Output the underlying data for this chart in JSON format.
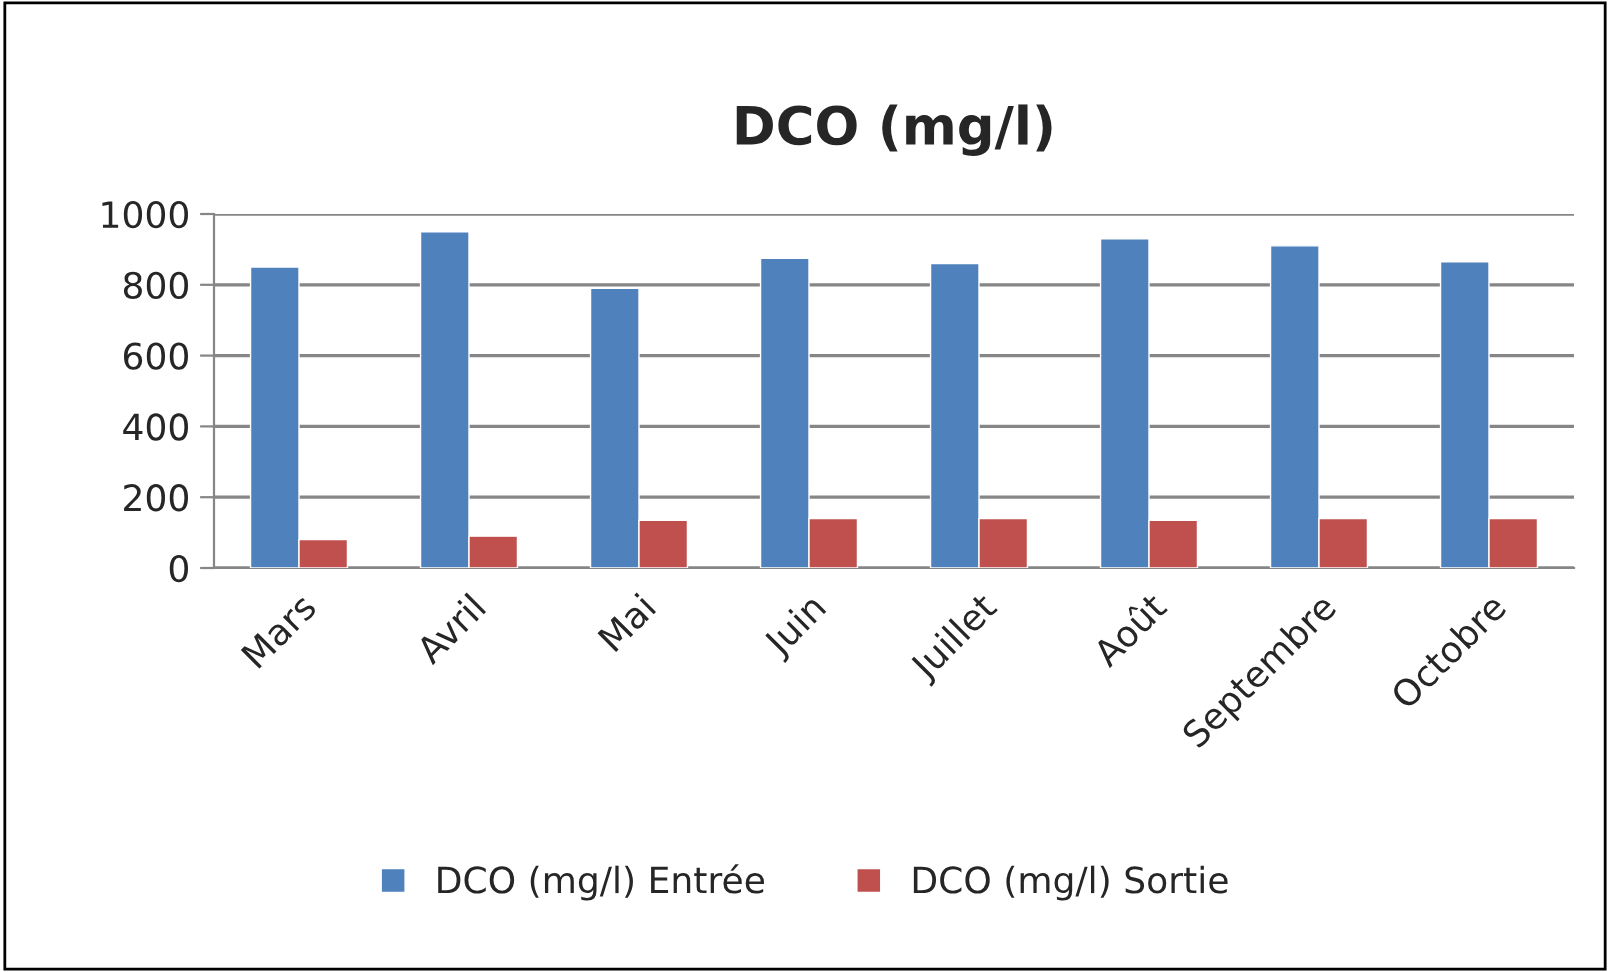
{
  "chart_data": {
    "type": "bar",
    "title": "DCO (mg/l)",
    "categories": [
      "Mars",
      "Avril",
      "Mai",
      "Juin",
      "Juillet",
      "Août",
      "Septembre",
      "Octobre"
    ],
    "series": [
      {
        "name": "DCO (mg/l) Entrée",
        "color": "#4f81bd",
        "values": [
          850,
          950,
          790,
          875,
          860,
          930,
          910,
          865
        ]
      },
      {
        "name": "DCO (mg/l) Sortie",
        "color": "#c0504d",
        "values": [
          80,
          90,
          135,
          140,
          140,
          135,
          140,
          140
        ]
      }
    ],
    "ylim": [
      0,
      1000
    ],
    "yticks": [
      0,
      200,
      400,
      600,
      800,
      1000
    ],
    "grid": "y",
    "legend": "bottom"
  }
}
